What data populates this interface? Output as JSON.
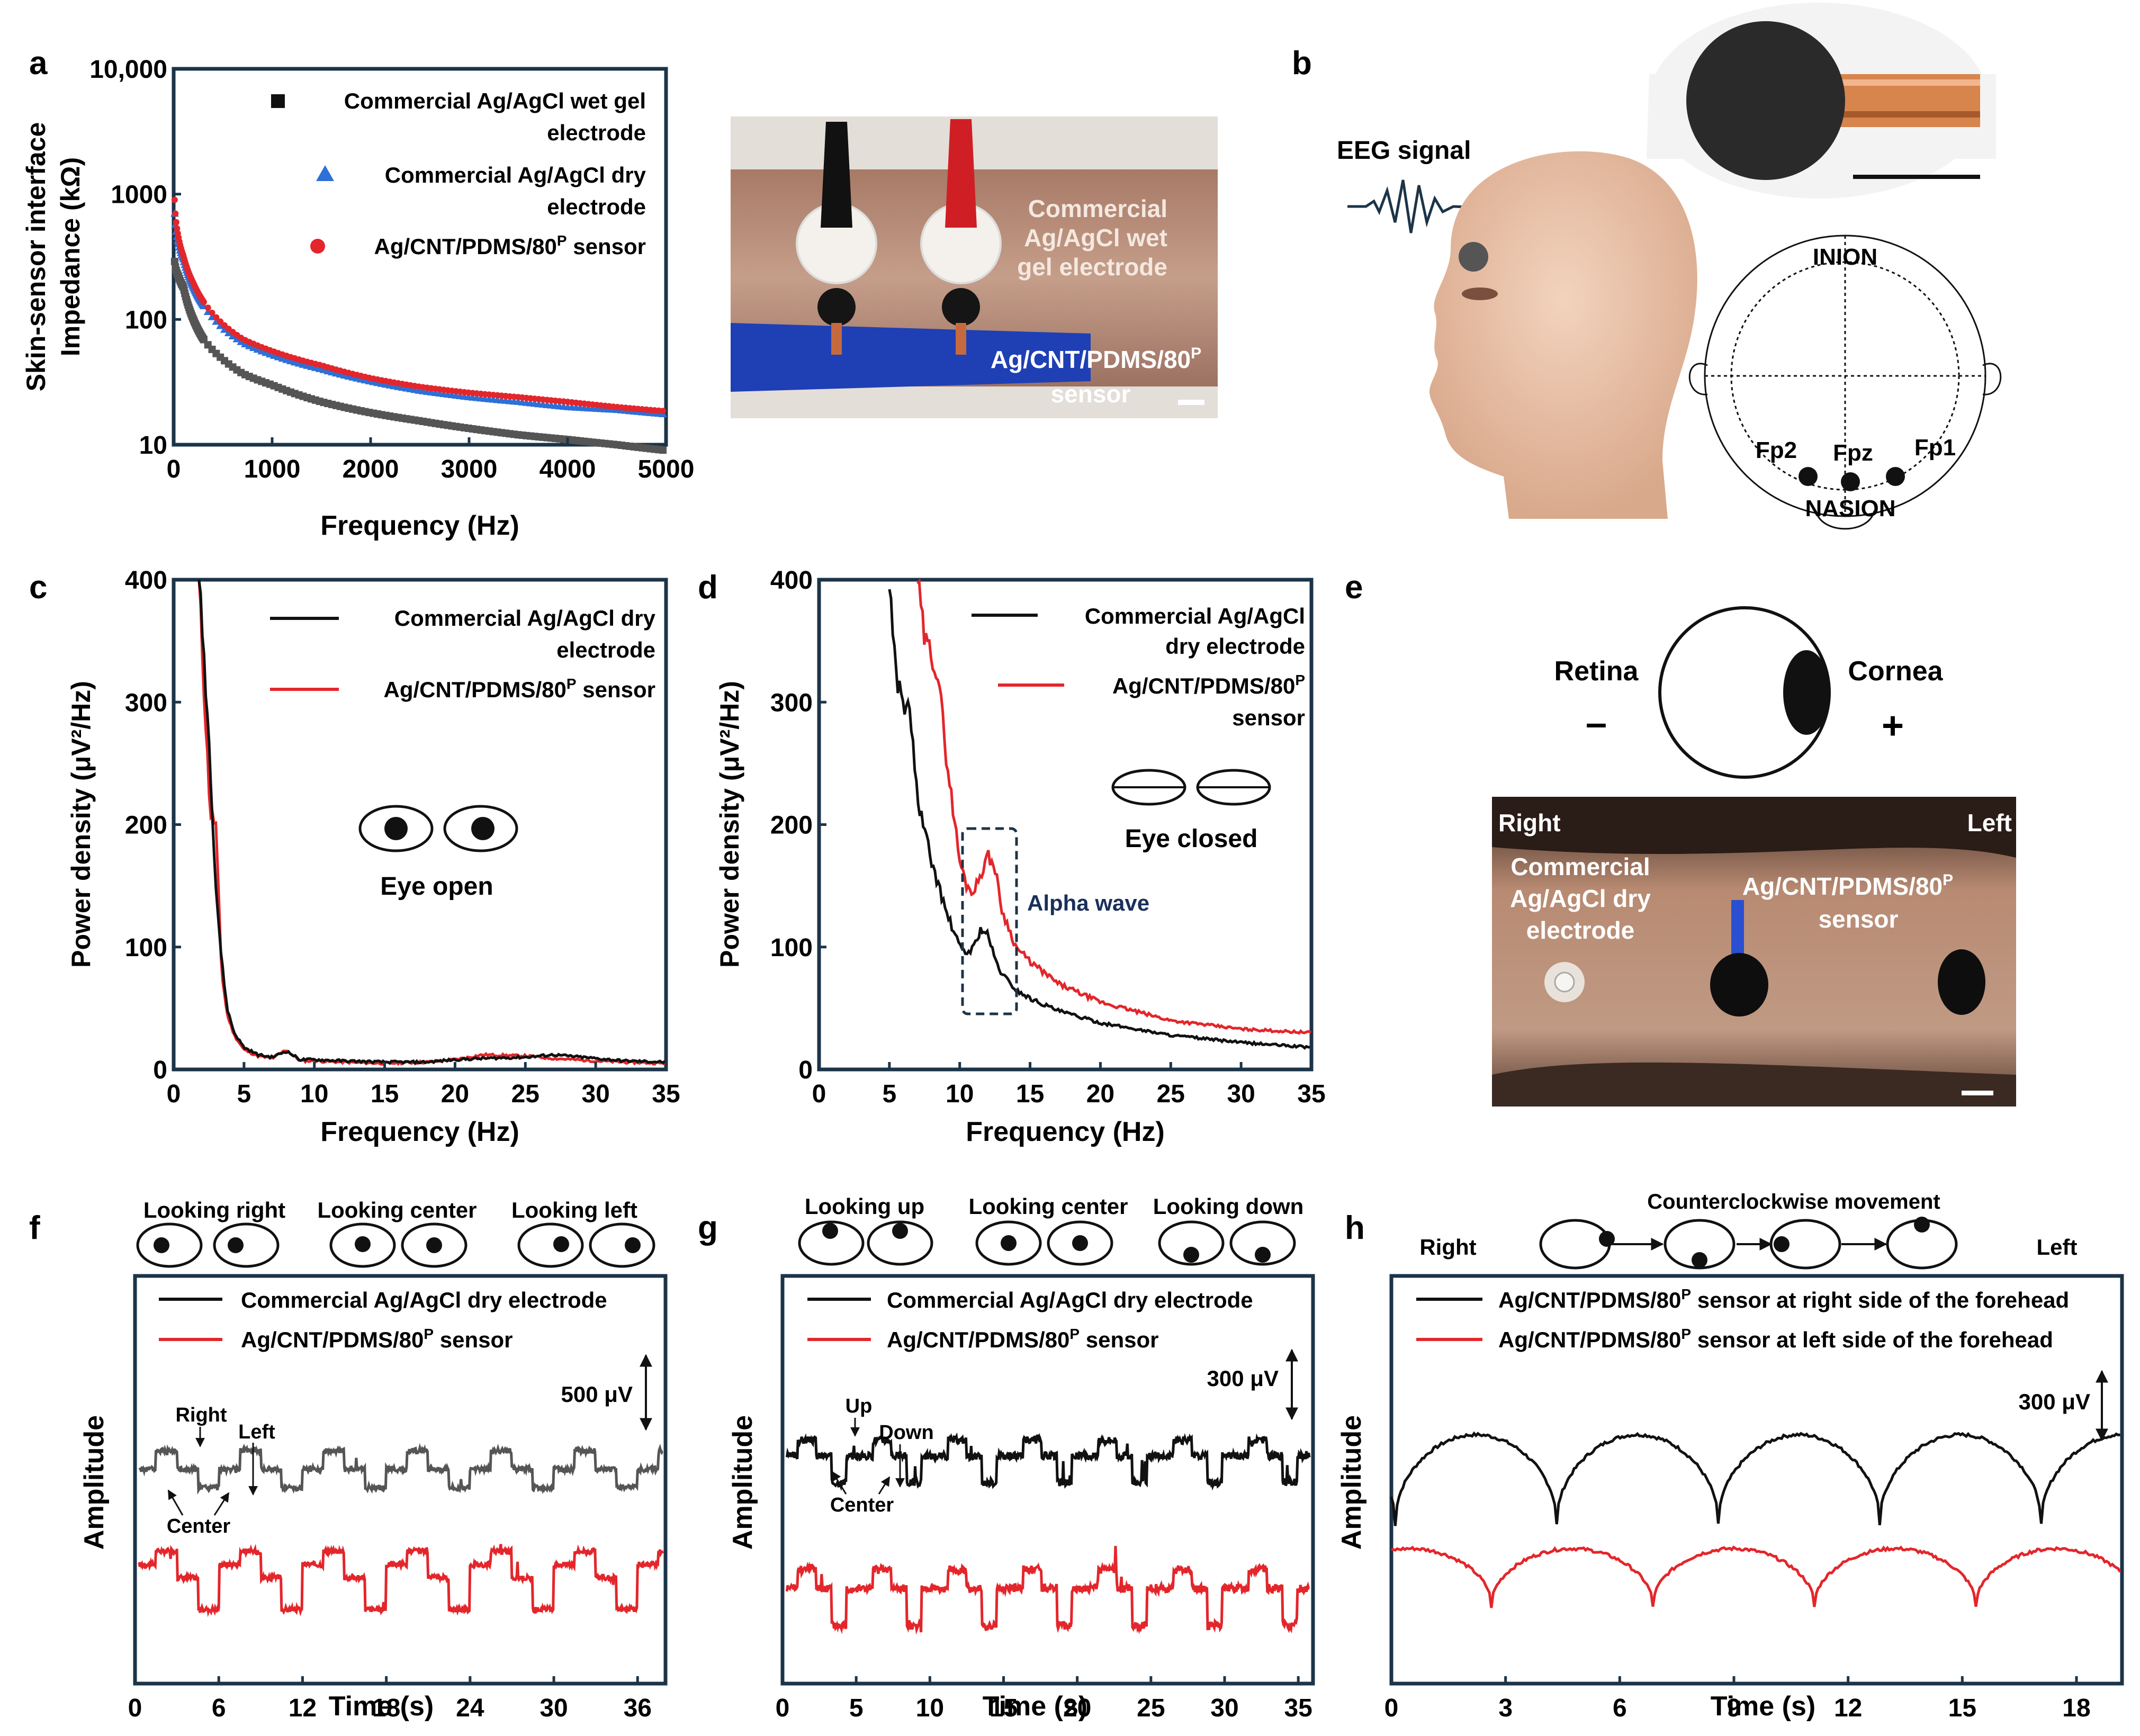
{
  "panels": {
    "a": "a",
    "b": "b",
    "c": "c",
    "d": "d",
    "e": "e",
    "f": "f",
    "g": "g",
    "h": "h"
  },
  "colors": {
    "axis": "#1c3448",
    "black": "#111111",
    "grey": "#555555",
    "blue": "#2e6fd8",
    "red": "#e3262b",
    "navy": "#1a2f5a"
  },
  "a": {
    "ylabel_line1": "Skin-sensor interface",
    "ylabel_line2": "Impedance (kΩ)",
    "xlabel": "Frequency (Hz)",
    "xticks": [
      "0",
      "1000",
      "2000",
      "3000",
      "4000",
      "5000"
    ],
    "yticks": [
      "10",
      "100",
      "1000",
      "10,000"
    ],
    "legend": [
      {
        "marker": "square",
        "line1": "Commercial Ag/AgCl wet gel",
        "line2": "electrode"
      },
      {
        "marker": "triangle",
        "line1": "Commercial Ag/AgCl dry",
        "line2": "electrode"
      },
      {
        "marker": "circle",
        "line1": "Ag/CNT/PDMS/80",
        "sup": "P",
        "tail": " sensor"
      }
    ],
    "photo_label_1": [
      "Commercial",
      "Ag/AgCl wet",
      "gel electrode"
    ],
    "photo_label_2": {
      "line1": "Ag/CNT/PDMS/80",
      "sup": "P",
      "line2": "sensor"
    }
  },
  "b": {
    "eeg_label": "EEG signal",
    "inion": "INION",
    "nasion": "NASION",
    "fp2": "Fp2",
    "fpz": "Fpz",
    "fp1": "Fp1"
  },
  "c": {
    "ylabel": "Power density (μV²/Hz)",
    "xlabel": "Frequency (Hz)",
    "xticks": [
      "0",
      "5",
      "10",
      "15",
      "20",
      "25",
      "30",
      "35"
    ],
    "yticks": [
      "0",
      "100",
      "200",
      "300",
      "400"
    ],
    "legend_black_1": "Commercial Ag/AgCl dry",
    "legend_black_2": "electrode",
    "legend_red": "Ag/CNT/PDMS/80",
    "legend_red_sup": "P",
    "legend_red_tail": " sensor",
    "eye_label": "Eye open"
  },
  "d": {
    "ylabel": "Power density (μV²/Hz)",
    "xlabel": "Frequency (Hz)",
    "xticks": [
      "0",
      "5",
      "10",
      "15",
      "20",
      "25",
      "30",
      "35"
    ],
    "yticks": [
      "0",
      "100",
      "200",
      "300",
      "400"
    ],
    "legend_black_1": "Commercial Ag/AgCl",
    "legend_black_2": "dry electrode",
    "legend_red_1": "Ag/CNT/PDMS/80",
    "legend_red_sup": "P",
    "legend_red_2": "sensor",
    "eye_label": "Eye closed",
    "alpha_label": "Alpha wave"
  },
  "e": {
    "retina": "Retina",
    "cornea": "Cornea",
    "minus": "–",
    "plus": "+",
    "right": "Right",
    "left": "Left",
    "commercial": [
      "Commercial",
      "Ag/AgCl dry",
      "electrode"
    ],
    "sensor_1": "Ag/CNT/PDMS/80",
    "sensor_sup": "P",
    "sensor_2": "sensor"
  },
  "f": {
    "ylabel": "Amplitude",
    "xlabel": "Time (s)",
    "xticks": [
      "0",
      "6",
      "12",
      "18",
      "24",
      "30",
      "36"
    ],
    "looking": [
      "Looking right",
      "Looking center",
      "Looking left"
    ],
    "legend_black": "Commercial Ag/AgCl dry electrode",
    "legend_red": "Ag/CNT/PDMS/80",
    "legend_red_sup": "P",
    "legend_red_tail": " sensor",
    "scale": "500 μV",
    "ann_right": "Right",
    "ann_left": "Left",
    "ann_center": "Center"
  },
  "g": {
    "ylabel": "Amplitude",
    "xlabel": "Time (s)",
    "xticks": [
      "0",
      "5",
      "10",
      "15",
      "20",
      "25",
      "30",
      "35"
    ],
    "looking": [
      "Looking up",
      "Looking center",
      "Looking down"
    ],
    "legend_black": "Commercial Ag/AgCl dry electrode",
    "legend_red": "Ag/CNT/PDMS/80",
    "legend_red_sup": "P",
    "legend_red_tail": " sensor",
    "scale": "300 μV",
    "ann_up": "Up",
    "ann_down": "Down",
    "ann_center": "Center"
  },
  "h": {
    "ylabel": "Amplitude",
    "xlabel": "Time (s)",
    "xticks": [
      "0",
      "3",
      "6",
      "9",
      "12",
      "15",
      "18"
    ],
    "title": "Counterclockwise movement",
    "right": "Right",
    "left": "Left",
    "legend_black_1": "Ag/CNT/PDMS/80",
    "legend_black_sup": "P",
    "legend_black_2": " sensor at right side of the forehead",
    "legend_red_1": "Ag/CNT/PDMS/80",
    "legend_red_sup": "P",
    "legend_red_2": " sensor at left side of the forehead",
    "scale": "300 μV"
  },
  "chart_data": [
    {
      "panel": "a",
      "type": "scatter",
      "xlim": [
        0,
        5000
      ],
      "ylim": [
        10,
        10000
      ],
      "yscale": "log",
      "series": [
        {
          "name": "Commercial Ag/AgCl wet gel electrode",
          "x": [
            10,
            50,
            100,
            200,
            300,
            500,
            700,
            1000,
            1500,
            2000,
            2500,
            3000,
            3500,
            4000,
            4500,
            5000
          ],
          "values": [
            290,
            220,
            180,
            100,
            70,
            48,
            37,
            30,
            22,
            18,
            15.5,
            13.5,
            12,
            11,
            10,
            9
          ]
        },
        {
          "name": "Commercial Ag/AgCl dry electrode",
          "x": [
            10,
            50,
            100,
            200,
            300,
            500,
            700,
            1000,
            1500,
            2000,
            2500,
            3000,
            3500,
            4000,
            4500,
            5000
          ],
          "values": [
            700,
            400,
            300,
            180,
            130,
            85,
            65,
            52,
            40,
            32,
            27,
            24,
            22,
            20,
            19,
            17.5
          ]
        },
        {
          "name": "Ag/CNT/PDMS/80P sensor",
          "x": [
            10,
            50,
            100,
            200,
            300,
            500,
            700,
            1000,
            1500,
            2000,
            2500,
            3000,
            3500,
            4000,
            4500,
            5000
          ],
          "values": [
            900,
            450,
            320,
            195,
            140,
            92,
            70,
            56,
            43,
            34,
            29,
            26,
            24,
            22,
            20,
            18.5
          ]
        }
      ]
    },
    {
      "panel": "c",
      "type": "line",
      "xlim": [
        0,
        35
      ],
      "ylim": [
        0,
        400
      ],
      "series": [
        {
          "name": "Commercial Ag/AgCl dry electrode",
          "x": [
            1.8,
            2.2,
            2.6,
            3,
            3.4,
            3.8,
            4.3,
            5,
            6,
            7,
            8,
            9,
            10,
            12,
            15,
            18,
            20,
            22,
            25,
            27,
            30,
            32,
            35
          ],
          "values": [
            400,
            330,
            250,
            150,
            90,
            50,
            30,
            18,
            12,
            10,
            15,
            8,
            8,
            7,
            6,
            6,
            8,
            9,
            10,
            12,
            9,
            7,
            6
          ]
        },
        {
          "name": "Ag/CNT/PDMS/80P sensor",
          "x": [
            1.8,
            2.2,
            2.6,
            3,
            3.4,
            3.8,
            4.3,
            5,
            6,
            7,
            8,
            9,
            10,
            12,
            15,
            18,
            20,
            22,
            25,
            27,
            30,
            32,
            35
          ],
          "values": [
            400,
            300,
            210,
            200,
            80,
            45,
            28,
            16,
            11,
            9,
            16,
            7,
            7,
            6,
            5,
            6,
            8,
            12,
            11,
            9,
            7,
            6,
            5
          ]
        }
      ]
    },
    {
      "panel": "d",
      "type": "line",
      "xlim": [
        0,
        35
      ],
      "ylim": [
        0,
        400
      ],
      "series": [
        {
          "name": "Commercial Ag/AgCl dry electrode",
          "x": [
            5,
            5.5,
            6,
            6.5,
            7,
            8,
            9,
            10,
            10.5,
            11,
            11.5,
            12,
            12.5,
            13,
            14,
            15,
            17,
            20,
            25,
            30,
            35
          ],
          "values": [
            400,
            320,
            300,
            290,
            220,
            170,
            130,
            100,
            95,
            100,
            115,
            110,
            90,
            78,
            65,
            58,
            48,
            38,
            28,
            22,
            18
          ]
        },
        {
          "name": "Ag/CNT/PDMS/80P sensor",
          "x": [
            7,
            7.5,
            8,
            8.5,
            9,
            10,
            10.5,
            11,
            11.5,
            12,
            12.5,
            13,
            14,
            15,
            17,
            20,
            25,
            30,
            35
          ],
          "values": [
            400,
            350,
            340,
            320,
            260,
            170,
            150,
            145,
            160,
            175,
            165,
            130,
            100,
            88,
            70,
            55,
            40,
            33,
            30
          ]
        }
      ]
    },
    {
      "panel": "f",
      "type": "line",
      "xlim": [
        0,
        38
      ],
      "series": [
        {
          "name": "Commercial Ag/AgCl dry electrode"
        },
        {
          "name": "Ag/CNT/PDMS/80P sensor"
        }
      ]
    },
    {
      "panel": "g",
      "type": "line",
      "xlim": [
        0,
        36
      ],
      "series": [
        {
          "name": "Commercial Ag/AgCl dry electrode"
        },
        {
          "name": "Ag/CNT/PDMS/80P sensor"
        }
      ]
    },
    {
      "panel": "h",
      "type": "line",
      "xlim": [
        0,
        19
      ],
      "series": [
        {
          "name": "Ag/CNT/PDMS/80P sensor at right side of the forehead"
        },
        {
          "name": "Ag/CNT/PDMS/80P sensor at left side of the forehead"
        }
      ]
    }
  ]
}
